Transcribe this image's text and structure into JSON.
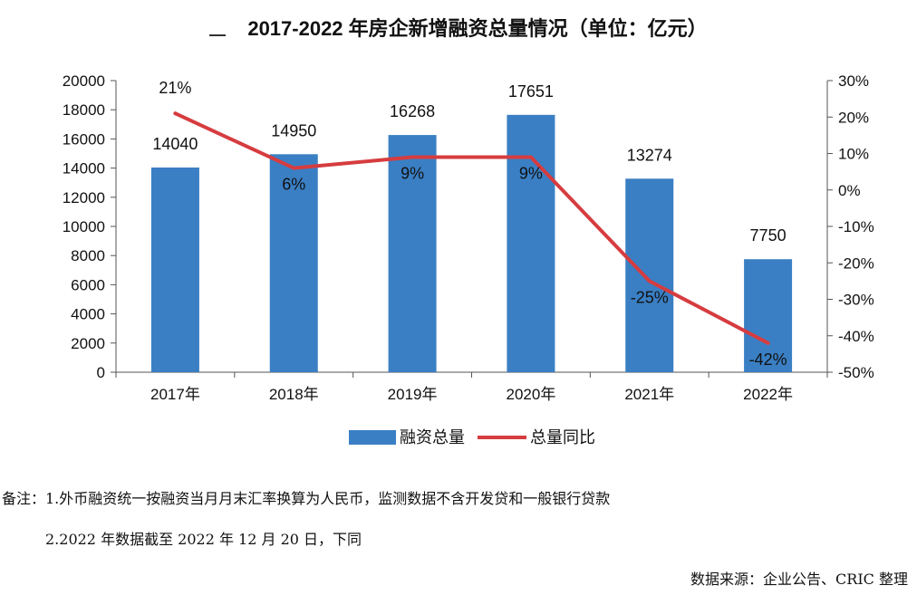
{
  "chart_data": {
    "type": "bar+line",
    "title": "2017-2022 年房企新增融资总量情况（单位：亿元）",
    "categories": [
      "2017年",
      "2018年",
      "2019年",
      "2020年",
      "2021年",
      "2022年"
    ],
    "series": [
      {
        "name": "融资总量",
        "type": "bar",
        "axis": "left",
        "values": [
          14040,
          14950,
          16268,
          17651,
          13274,
          7750
        ],
        "color": "#3a7fc4"
      },
      {
        "name": "总量同比",
        "type": "line",
        "axis": "right",
        "values": [
          21,
          6,
          9,
          9,
          -25,
          -42
        ],
        "color": "#d63c3f"
      }
    ],
    "bar_labels": [
      "14040",
      "14950",
      "16268",
      "17651",
      "13274",
      "7750"
    ],
    "line_labels": [
      "21%",
      "6%",
      "9%",
      "9%",
      "-25%",
      "-42%"
    ],
    "left_axis": {
      "min": 0,
      "max": 20000,
      "step": 2000,
      "ticks": [
        "0",
        "2000",
        "4000",
        "6000",
        "8000",
        "10000",
        "12000",
        "14000",
        "16000",
        "18000",
        "20000"
      ]
    },
    "right_axis": {
      "min": -50,
      "max": 30,
      "step": 10,
      "ticks": [
        "-50%",
        "-40%",
        "-30%",
        "-20%",
        "-10%",
        "0%",
        "10%",
        "20%",
        "30%"
      ]
    },
    "legend": {
      "position": "bottom"
    }
  },
  "notes": {
    "line1": "备注：1.外币融资统一按融资当月月末汇率换算为人民币，监测数据不含开发贷和一般银行贷款",
    "line2": "2.2022 年数据截至 2022 年 12 月 20 日，下同",
    "source": "数据来源：企业公告、CRIC 整理"
  }
}
